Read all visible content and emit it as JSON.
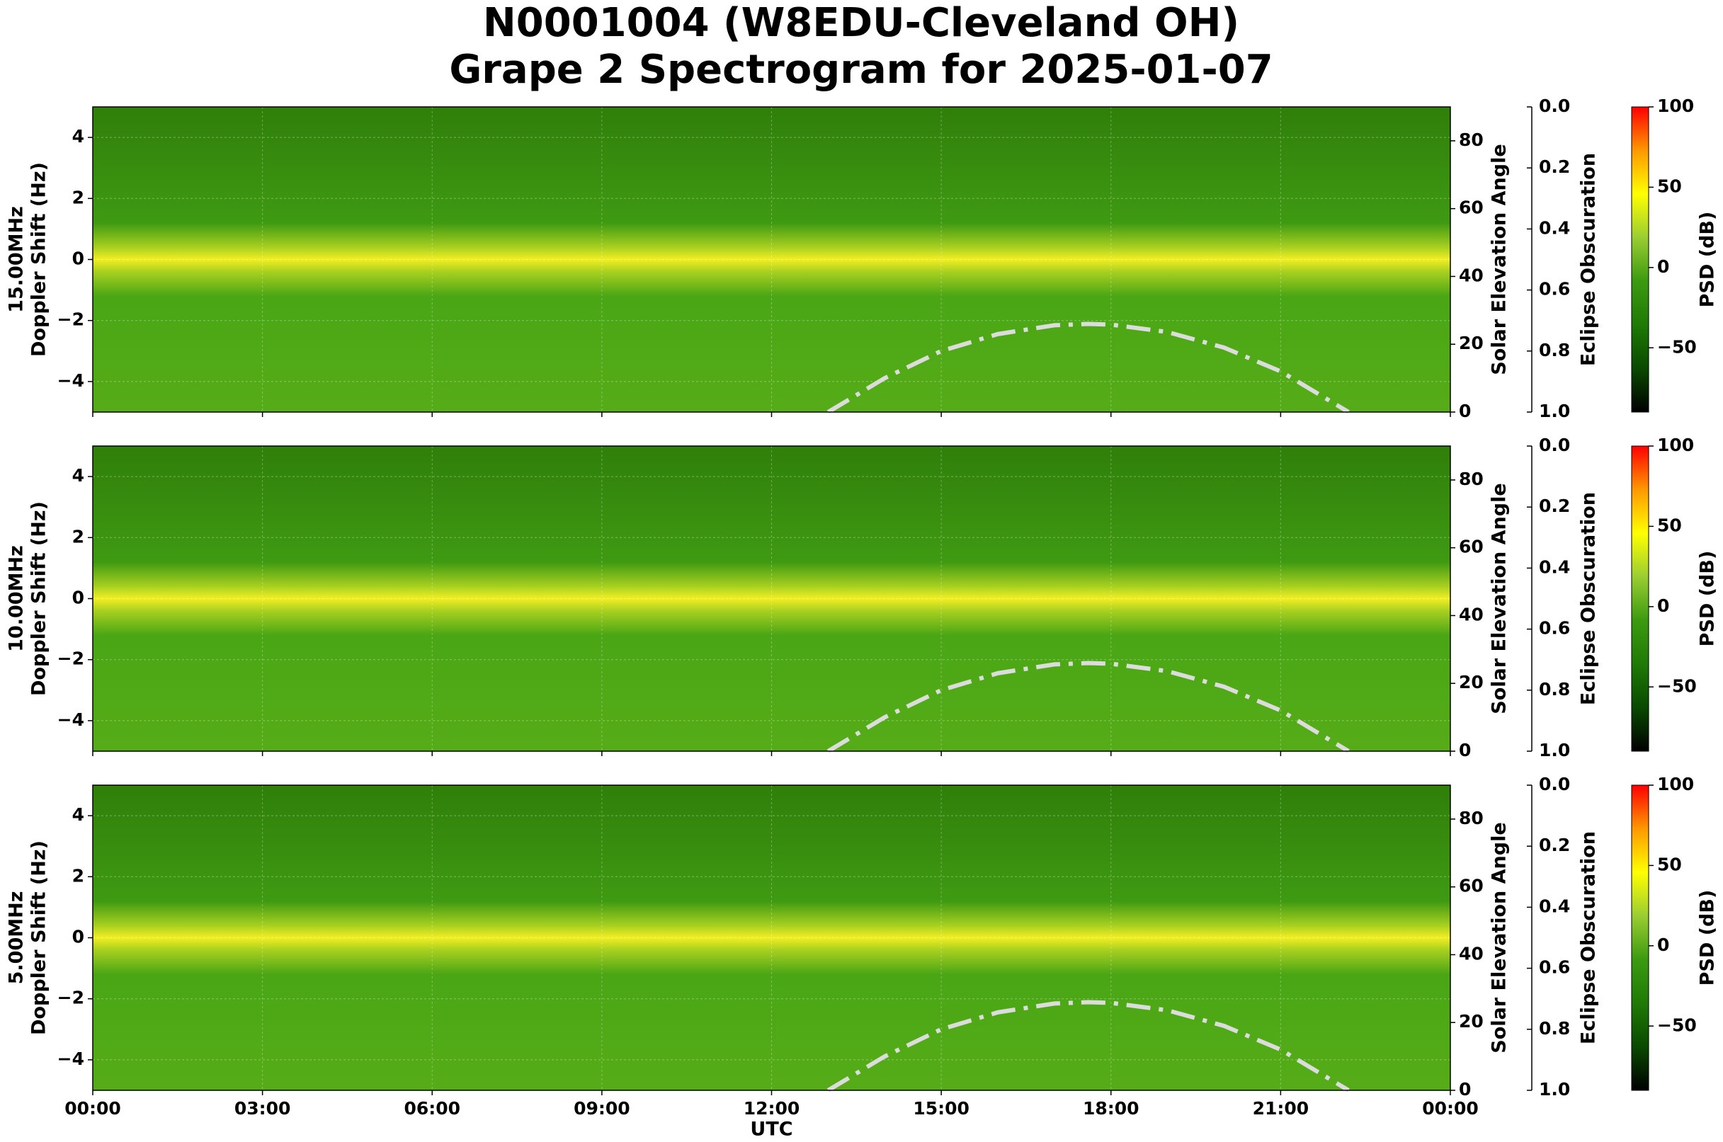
{
  "chart_data": {
    "type": "spectrogram",
    "title": [
      "N0001004 (W8EDU-Cleveland OH)",
      "Grape 2 Spectrogram for 2025-01-07"
    ],
    "xlabel": "UTC",
    "xlim": [
      0,
      24
    ],
    "xticks": [
      {
        "value": 0,
        "label": "00:00"
      },
      {
        "value": 3,
        "label": "03:00"
      },
      {
        "value": 6,
        "label": "06:00"
      },
      {
        "value": 9,
        "label": "09:00"
      },
      {
        "value": 12,
        "label": "12:00"
      },
      {
        "value": 15,
        "label": "15:00"
      },
      {
        "value": 18,
        "label": "18:00"
      },
      {
        "value": 21,
        "label": "21:00"
      },
      {
        "value": 24,
        "label": "00:00"
      }
    ],
    "grid": true,
    "solar_elevation": {
      "x": [
        13,
        14,
        15,
        16,
        17,
        17.6,
        18,
        19,
        20,
        21,
        22,
        22.2
      ],
      "values": [
        0,
        10,
        18,
        23,
        25.6,
        26,
        25.8,
        23.6,
        19,
        12,
        2,
        0
      ],
      "color": "#dcdcdc",
      "axis": "y2"
    },
    "panels": [
      {
        "frequency": "15.00MHz",
        "ylabel": "Doppler Shift (Hz)",
        "ylim": [
          -5,
          5
        ],
        "yticks": [
          {
            "value": -4,
            "label": "−4"
          },
          {
            "value": -2,
            "label": "−2"
          },
          0,
          2,
          4
        ],
        "y2label": "Solar Elevation Angle",
        "y2lim": [
          0,
          90
        ],
        "y2ticks": [
          0,
          20,
          40,
          60,
          80
        ],
        "y3label": "Eclipse Obscuration",
        "y3lim": [
          1,
          0
        ],
        "y3ticks": [
          {
            "value": 0,
            "label": "0.0"
          },
          0.2,
          0.4,
          0.6,
          0.8,
          {
            "value": 1,
            "label": "1.0"
          }
        ]
      },
      {
        "frequency": "10.00MHz",
        "ylabel": "Doppler Shift (Hz)",
        "ylim": [
          -5,
          5
        ],
        "yticks": [
          {
            "value": -4,
            "label": "−4"
          },
          {
            "value": -2,
            "label": "−2"
          },
          0,
          2,
          4
        ],
        "y2label": "Solar Elevation Angle",
        "y2lim": [
          0,
          90
        ],
        "y2ticks": [
          0,
          20,
          40,
          60,
          80
        ],
        "y3label": "Eclipse Obscuration",
        "y3lim": [
          1,
          0
        ],
        "y3ticks": [
          {
            "value": 0,
            "label": "0.0"
          },
          0.2,
          0.4,
          0.6,
          0.8,
          {
            "value": 1,
            "label": "1.0"
          }
        ]
      },
      {
        "frequency": "5.00MHz",
        "ylabel": "Doppler Shift (Hz)",
        "ylim": [
          -5,
          5
        ],
        "yticks": [
          {
            "value": -4,
            "label": "−4"
          },
          {
            "value": -2,
            "label": "−2"
          },
          0,
          2,
          4
        ],
        "y2label": "Solar Elevation Angle",
        "y2lim": [
          0,
          90
        ],
        "y2ticks": [
          0,
          20,
          40,
          60,
          80
        ],
        "y3label": "Eclipse Obscuration",
        "y3lim": [
          1,
          0
        ],
        "y3ticks": [
          {
            "value": 0,
            "label": "0.0"
          },
          0.2,
          0.4,
          0.6,
          0.8,
          {
            "value": 1,
            "label": "1.0"
          }
        ]
      }
    ],
    "colorbar": {
      "label": "PSD (dB)",
      "lim": [
        -90,
        100
      ],
      "ticks": [
        {
          "value": -50,
          "label": "−50"
        },
        0,
        50,
        100
      ],
      "colors": [
        "#000000",
        "#0a4a00",
        "#1f7a06",
        "#3c9a10",
        "#9acd32",
        "#ffff00",
        "#ff9900",
        "#ff0000"
      ]
    }
  }
}
